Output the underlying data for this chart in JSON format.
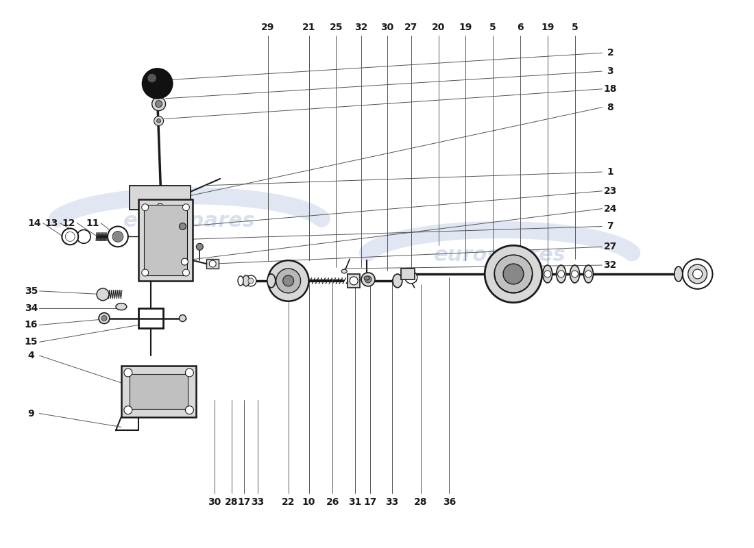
{
  "bg_color": "#ffffff",
  "watermark_text": "eurospares",
  "watermark_color": "#c8d4e8",
  "fig_width": 11.0,
  "fig_height": 8.0,
  "dpi": 100,
  "dark": "#1a1a1a",
  "mid": "#555555",
  "light_gray": "#cccccc",
  "part_gray": "#d8d8d8",
  "dark_gray": "#888888"
}
